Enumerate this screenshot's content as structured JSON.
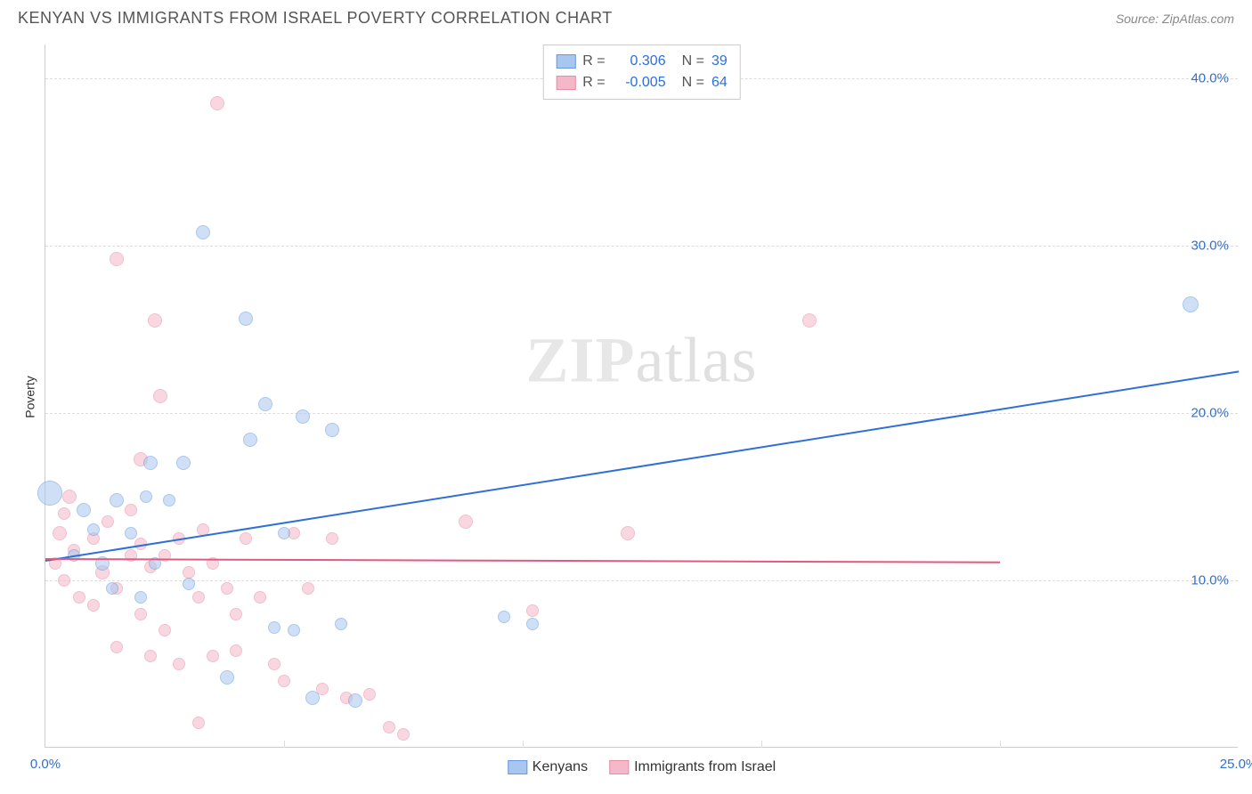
{
  "header": {
    "title": "KENYAN VS IMMIGRANTS FROM ISRAEL POVERTY CORRELATION CHART",
    "source": "Source: ZipAtlas.com"
  },
  "watermark": {
    "zip": "ZIP",
    "atlas": "atlas"
  },
  "chart": {
    "type": "scatter",
    "ylabel": "Poverty",
    "background_color": "#ffffff",
    "grid_color": "#dddddd",
    "xlim": [
      0,
      25
    ],
    "ylim": [
      0,
      42
    ],
    "xticks": [
      {
        "value": 0,
        "label": "0.0%"
      },
      {
        "value": 25,
        "label": "25.0%"
      }
    ],
    "xtick_minor_values": [
      5,
      10,
      15,
      20
    ],
    "yticks": [
      {
        "value": 10,
        "label": "10.0%"
      },
      {
        "value": 20,
        "label": "20.0%"
      },
      {
        "value": 30,
        "label": "30.0%"
      },
      {
        "value": 40,
        "label": "40.0%"
      }
    ],
    "ytick_label_color": "#2e6fd8",
    "xtick_label_color": "#2e6fd8",
    "axis_fontsize": 15,
    "series": [
      {
        "name": "Kenyans",
        "fill_color": "#a8c7f0",
        "stroke_color": "#6699e0",
        "fill_opacity": 0.55,
        "marker_radius_range": [
          7,
          14
        ],
        "trend": {
          "x1": 0,
          "y1": 11.2,
          "x2": 25,
          "y2": 22.5,
          "color": "#2e6fd8",
          "width": 2
        },
        "stats": {
          "R": "0.306",
          "N": "39"
        },
        "points": [
          {
            "x": 0.1,
            "y": 15.2,
            "r": 14
          },
          {
            "x": 3.3,
            "y": 30.8,
            "r": 8
          },
          {
            "x": 4.2,
            "y": 25.6,
            "r": 8
          },
          {
            "x": 2.2,
            "y": 17.0,
            "r": 8
          },
          {
            "x": 2.9,
            "y": 17.0,
            "r": 8
          },
          {
            "x": 1.5,
            "y": 14.8,
            "r": 8
          },
          {
            "x": 0.8,
            "y": 14.2,
            "r": 8
          },
          {
            "x": 2.1,
            "y": 15.0,
            "r": 7
          },
          {
            "x": 1.0,
            "y": 13.0,
            "r": 7
          },
          {
            "x": 1.8,
            "y": 12.8,
            "r": 7
          },
          {
            "x": 2.6,
            "y": 14.8,
            "r": 7
          },
          {
            "x": 0.6,
            "y": 11.5,
            "r": 7
          },
          {
            "x": 1.2,
            "y": 11.0,
            "r": 8
          },
          {
            "x": 2.3,
            "y": 11.0,
            "r": 7
          },
          {
            "x": 1.4,
            "y": 9.5,
            "r": 7
          },
          {
            "x": 2.0,
            "y": 9.0,
            "r": 7
          },
          {
            "x": 3.0,
            "y": 9.8,
            "r": 7
          },
          {
            "x": 3.8,
            "y": 4.2,
            "r": 8
          },
          {
            "x": 4.8,
            "y": 7.2,
            "r": 7
          },
          {
            "x": 4.6,
            "y": 20.5,
            "r": 8
          },
          {
            "x": 5.4,
            "y": 19.8,
            "r": 8
          },
          {
            "x": 4.3,
            "y": 18.4,
            "r": 8
          },
          {
            "x": 6.0,
            "y": 19.0,
            "r": 8
          },
          {
            "x": 5.0,
            "y": 12.8,
            "r": 7
          },
          {
            "x": 5.6,
            "y": 3.0,
            "r": 8
          },
          {
            "x": 5.2,
            "y": 7.0,
            "r": 7
          },
          {
            "x": 6.2,
            "y": 7.4,
            "r": 7
          },
          {
            "x": 6.5,
            "y": 2.8,
            "r": 8
          },
          {
            "x": 9.6,
            "y": 7.8,
            "r": 7
          },
          {
            "x": 10.2,
            "y": 7.4,
            "r": 7
          },
          {
            "x": 24.0,
            "y": 26.5,
            "r": 9
          }
        ]
      },
      {
        "name": "Immigrants from Israel",
        "fill_color": "#f5b8c8",
        "stroke_color": "#e88ca5",
        "fill_opacity": 0.55,
        "marker_radius_range": [
          7,
          10
        ],
        "trend": {
          "x1": 0,
          "y1": 11.3,
          "x2": 20,
          "y2": 11.1,
          "color": "#e05a82",
          "width": 2
        },
        "stats": {
          "R": "-0.005",
          "N": "64"
        },
        "points": [
          {
            "x": 1.5,
            "y": 29.2,
            "r": 8
          },
          {
            "x": 3.6,
            "y": 38.5,
            "r": 8
          },
          {
            "x": 2.3,
            "y": 25.5,
            "r": 8
          },
          {
            "x": 2.4,
            "y": 21.0,
            "r": 8
          },
          {
            "x": 2.0,
            "y": 17.2,
            "r": 8
          },
          {
            "x": 0.5,
            "y": 15.0,
            "r": 8
          },
          {
            "x": 0.4,
            "y": 14.0,
            "r": 7
          },
          {
            "x": 0.3,
            "y": 12.8,
            "r": 8
          },
          {
            "x": 0.6,
            "y": 11.8,
            "r": 7
          },
          {
            "x": 0.2,
            "y": 11.0,
            "r": 7
          },
          {
            "x": 0.4,
            "y": 10.0,
            "r": 7
          },
          {
            "x": 0.7,
            "y": 9.0,
            "r": 7
          },
          {
            "x": 1.0,
            "y": 12.5,
            "r": 7
          },
          {
            "x": 1.2,
            "y": 10.5,
            "r": 8
          },
          {
            "x": 1.5,
            "y": 9.5,
            "r": 7
          },
          {
            "x": 1.0,
            "y": 8.5,
            "r": 7
          },
          {
            "x": 1.3,
            "y": 13.5,
            "r": 7
          },
          {
            "x": 1.8,
            "y": 14.2,
            "r": 7
          },
          {
            "x": 1.8,
            "y": 11.5,
            "r": 7
          },
          {
            "x": 2.0,
            "y": 12.2,
            "r": 7
          },
          {
            "x": 2.2,
            "y": 10.8,
            "r": 7
          },
          {
            "x": 2.5,
            "y": 11.5,
            "r": 7
          },
          {
            "x": 2.8,
            "y": 12.5,
            "r": 7
          },
          {
            "x": 2.0,
            "y": 8.0,
            "r": 7
          },
          {
            "x": 2.5,
            "y": 7.0,
            "r": 7
          },
          {
            "x": 1.5,
            "y": 6.0,
            "r": 7
          },
          {
            "x": 2.2,
            "y": 5.5,
            "r": 7
          },
          {
            "x": 2.8,
            "y": 5.0,
            "r": 7
          },
          {
            "x": 3.0,
            "y": 10.5,
            "r": 7
          },
          {
            "x": 3.2,
            "y": 9.0,
            "r": 7
          },
          {
            "x": 3.5,
            "y": 11.0,
            "r": 7
          },
          {
            "x": 3.3,
            "y": 13.0,
            "r": 7
          },
          {
            "x": 3.8,
            "y": 9.5,
            "r": 7
          },
          {
            "x": 3.5,
            "y": 5.5,
            "r": 7
          },
          {
            "x": 3.2,
            "y": 1.5,
            "r": 7
          },
          {
            "x": 4.0,
            "y": 8.0,
            "r": 7
          },
          {
            "x": 4.2,
            "y": 12.5,
            "r": 7
          },
          {
            "x": 4.5,
            "y": 9.0,
            "r": 7
          },
          {
            "x": 4.8,
            "y": 5.0,
            "r": 7
          },
          {
            "x": 4.0,
            "y": 5.8,
            "r": 7
          },
          {
            "x": 5.2,
            "y": 12.8,
            "r": 7
          },
          {
            "x": 5.5,
            "y": 9.5,
            "r": 7
          },
          {
            "x": 5.0,
            "y": 4.0,
            "r": 7
          },
          {
            "x": 5.8,
            "y": 3.5,
            "r": 7
          },
          {
            "x": 6.0,
            "y": 12.5,
            "r": 7
          },
          {
            "x": 6.3,
            "y": 3.0,
            "r": 7
          },
          {
            "x": 6.8,
            "y": 3.2,
            "r": 7
          },
          {
            "x": 7.2,
            "y": 1.2,
            "r": 7
          },
          {
            "x": 7.5,
            "y": 0.8,
            "r": 7
          },
          {
            "x": 8.8,
            "y": 13.5,
            "r": 8
          },
          {
            "x": 10.2,
            "y": 8.2,
            "r": 7
          },
          {
            "x": 12.2,
            "y": 12.8,
            "r": 8
          },
          {
            "x": 16.0,
            "y": 25.5,
            "r": 8
          }
        ]
      }
    ],
    "stats_legend": {
      "r_label": "R =",
      "n_label": "N =",
      "value_color": "#2e6fd8",
      "label_color": "#555555"
    },
    "bottom_legend_labels": [
      "Kenyans",
      "Immigrants from Israel"
    ]
  }
}
